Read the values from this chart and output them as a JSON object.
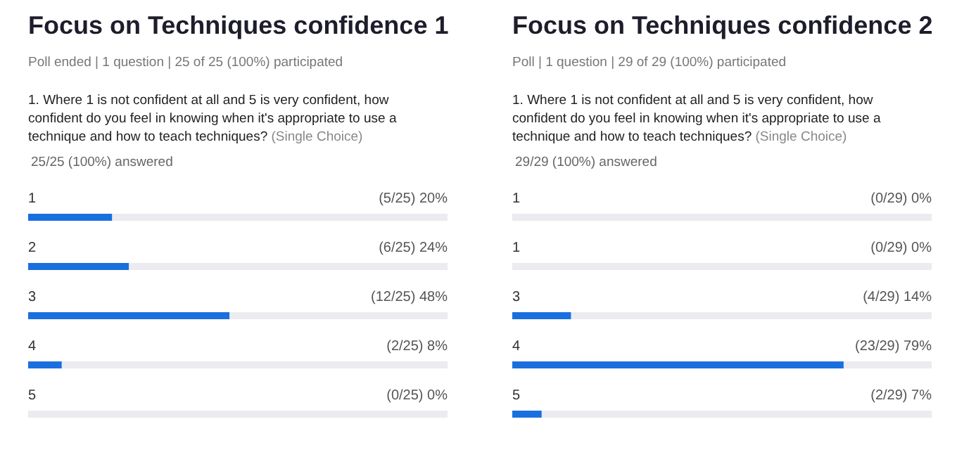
{
  "chart_data": [
    {
      "type": "bar",
      "orientation": "horizontal",
      "title": "Focus on Techniques confidence 1",
      "subtitle": "Poll ended | 1 question | 25 of 25 (100%) participated",
      "annotations": [
        "1. Where 1 is not confident at all and 5 is very confident, how confident do you feel in knowing when it's appropriate to use a technique and how to teach techniques?",
        "(Single Choice)",
        "25/25 (100%) answered"
      ],
      "categories": [
        "1",
        "2",
        "3",
        "4",
        "5"
      ],
      "values": [
        20,
        24,
        48,
        8,
        0
      ],
      "value_labels": [
        "(5/25) 20%",
        "(6/25) 24%",
        "(12/25) 48%",
        "(2/25) 8%",
        "(0/25) 0%"
      ],
      "color": "#1a6fdf",
      "xlim": [
        0,
        100
      ],
      "tick_labels": false
    },
    {
      "type": "bar",
      "orientation": "horizontal",
      "title": "Focus on Techniques confidence 2",
      "subtitle": "Poll | 1 question | 29 of 29 (100%) participated",
      "annotations": [
        "1. Where 1 is not confident at all and 5 is very confident, how confident do you feel in knowing when it's appropriate to use a technique and how to teach techniques?",
        "(Single Choice)",
        "29/29 (100%) answered"
      ],
      "categories": [
        "1",
        "1",
        "3",
        "4",
        "5"
      ],
      "values": [
        0,
        0,
        14,
        79,
        7
      ],
      "value_labels": [
        "(0/29) 0%",
        "(0/29) 0%",
        "(4/29) 14%",
        "(23/29) 79%",
        "(2/29) 7%"
      ],
      "color": "#1a6fdf",
      "xlim": [
        0,
        100
      ],
      "tick_labels": false
    }
  ]
}
